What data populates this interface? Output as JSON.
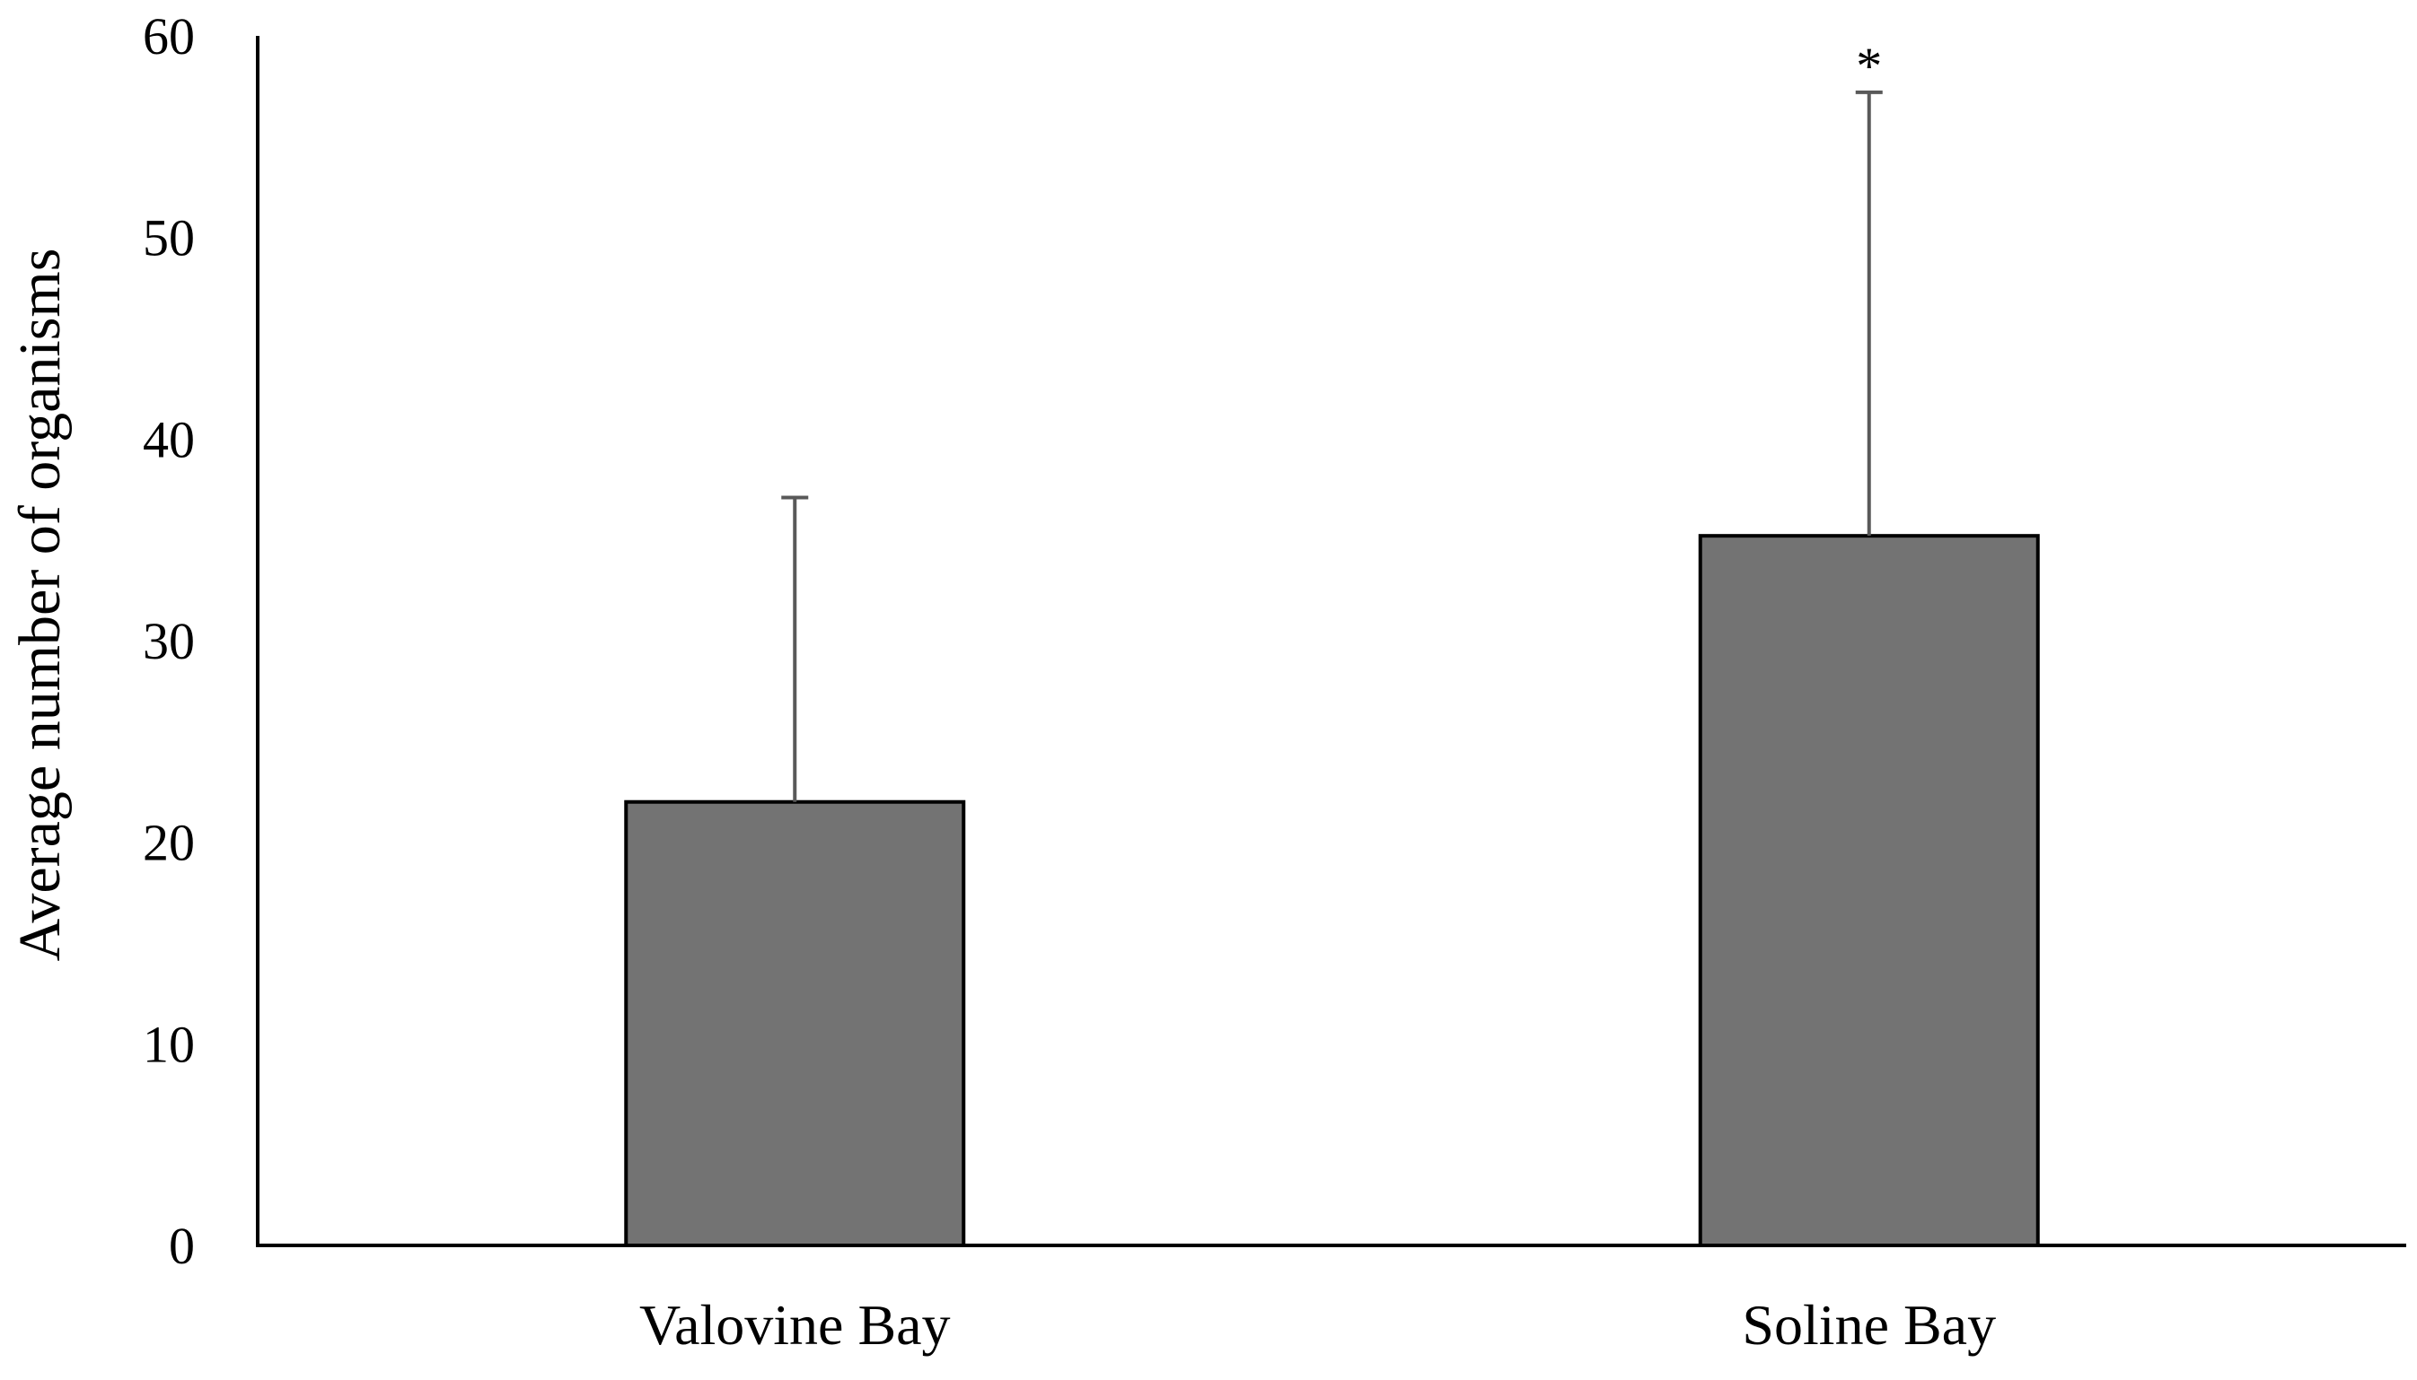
{
  "chart_data": {
    "type": "bar",
    "title": "",
    "xlabel": "",
    "ylabel": "Average number of organisms",
    "categories": [
      "Valovine Bay",
      "Soline Bay"
    ],
    "values": [
      22,
      35.2
    ],
    "error_plus": [
      15.1,
      22
    ],
    "annotations": [
      "",
      "*"
    ],
    "ylim": [
      0,
      60
    ],
    "yticks": [
      "0",
      "10",
      "20",
      "30",
      "40",
      "50",
      "60"
    ],
    "grid": false,
    "legend": "none",
    "bar_color": "#737373",
    "bar_edge_color": "#000000",
    "error_bar_color": "#595959"
  }
}
